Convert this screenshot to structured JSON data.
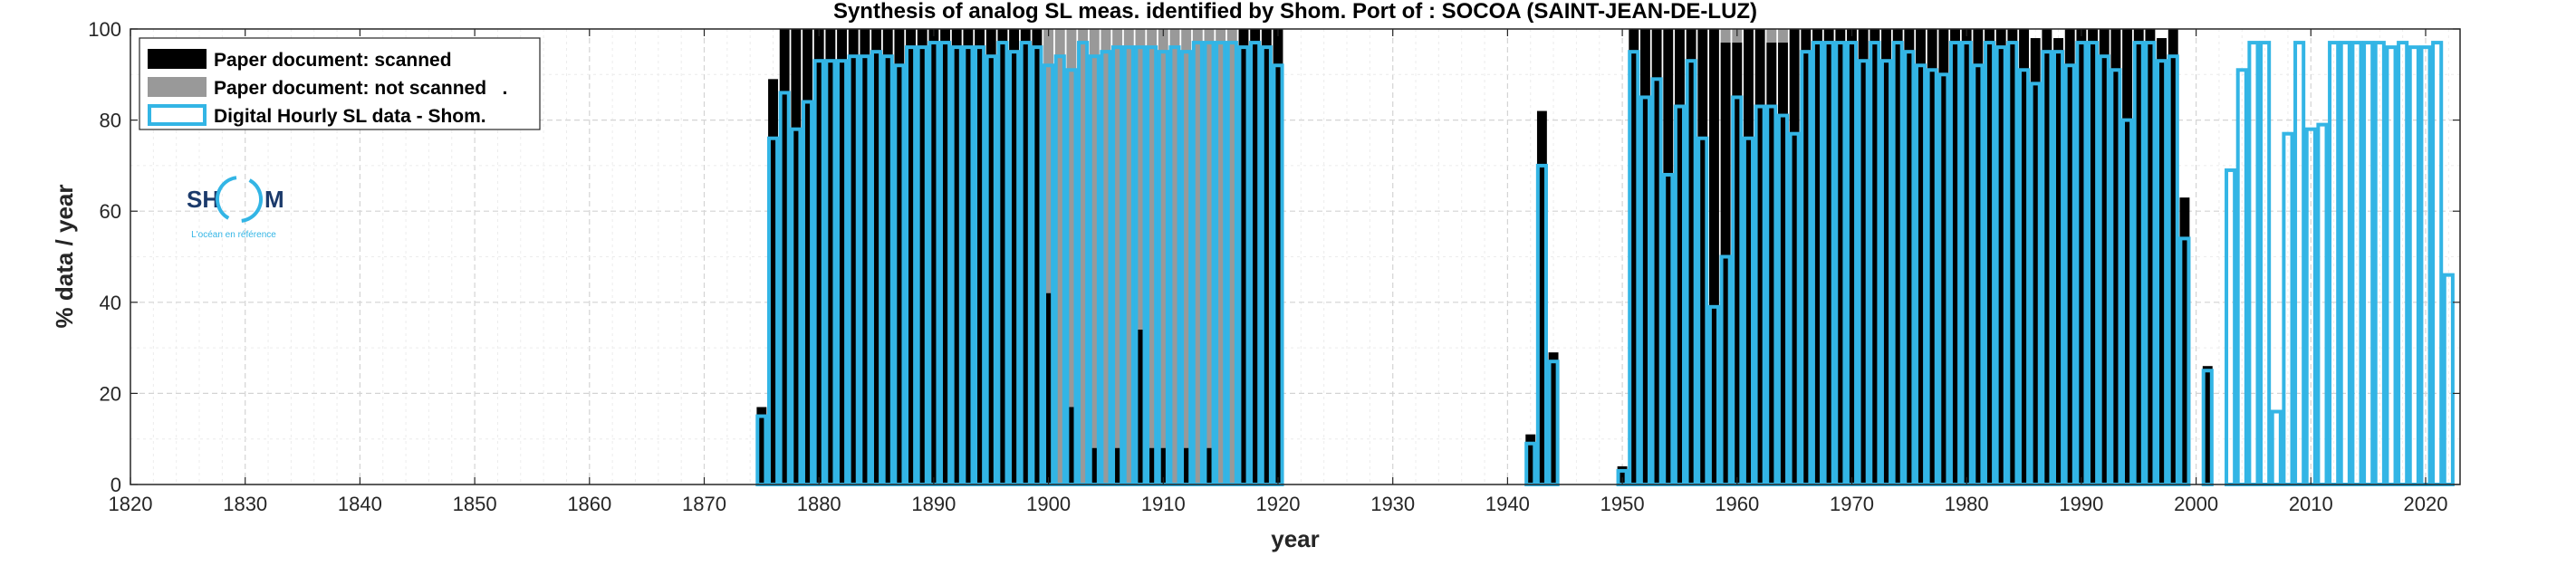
{
  "chart_data": {
    "type": "bar",
    "title": "Synthesis of analog SL meas. identified by Shom. Port of : SOCOA (SAINT-JEAN-DE-LUZ)",
    "xlabel": "year",
    "ylabel": "% data / year",
    "xlim": [
      1820,
      2023
    ],
    "ylim": [
      0,
      100
    ],
    "x_ticks": [
      1820,
      1830,
      1840,
      1850,
      1860,
      1870,
      1880,
      1890,
      1900,
      1910,
      1920,
      1930,
      1940,
      1950,
      1960,
      1970,
      1980,
      1990,
      2000,
      2010,
      2020
    ],
    "y_ticks": [
      0,
      20,
      40,
      60,
      80,
      100
    ],
    "grid": true,
    "legend_position": "top-left",
    "colors": {
      "scanned": "#000000",
      "not_scanned": "#999999",
      "digital": "#33b5e5"
    },
    "series": [
      {
        "name": "Paper document: scanned",
        "points": [
          {
            "x": 1875,
            "y": 17
          },
          {
            "x": 1876,
            "y": 89
          },
          {
            "x": 1877,
            "y": 100
          },
          {
            "x": 1878,
            "y": 100
          },
          {
            "x": 1879,
            "y": 100
          },
          {
            "x": 1880,
            "y": 100
          },
          {
            "x": 1881,
            "y": 100
          },
          {
            "x": 1882,
            "y": 100
          },
          {
            "x": 1883,
            "y": 100
          },
          {
            "x": 1884,
            "y": 100
          },
          {
            "x": 1885,
            "y": 100
          },
          {
            "x": 1886,
            "y": 100
          },
          {
            "x": 1887,
            "y": 100
          },
          {
            "x": 1888,
            "y": 100
          },
          {
            "x": 1889,
            "y": 100
          },
          {
            "x": 1890,
            "y": 100
          },
          {
            "x": 1891,
            "y": 100
          },
          {
            "x": 1892,
            "y": 100
          },
          {
            "x": 1893,
            "y": 100
          },
          {
            "x": 1894,
            "y": 100
          },
          {
            "x": 1895,
            "y": 100
          },
          {
            "x": 1896,
            "y": 100
          },
          {
            "x": 1897,
            "y": 100
          },
          {
            "x": 1898,
            "y": 100
          },
          {
            "x": 1899,
            "y": 100
          },
          {
            "x": 1900,
            "y": 42
          },
          {
            "x": 1902,
            "y": 17
          },
          {
            "x": 1904,
            "y": 8
          },
          {
            "x": 1906,
            "y": 8
          },
          {
            "x": 1908,
            "y": 34
          },
          {
            "x": 1909,
            "y": 8
          },
          {
            "x": 1910,
            "y": 8
          },
          {
            "x": 1912,
            "y": 8
          },
          {
            "x": 1914,
            "y": 8
          },
          {
            "x": 1917,
            "y": 100
          },
          {
            "x": 1918,
            "y": 100
          },
          {
            "x": 1919,
            "y": 100
          },
          {
            "x": 1920,
            "y": 100
          },
          {
            "x": 1942,
            "y": 11
          },
          {
            "x": 1943,
            "y": 82
          },
          {
            "x": 1944,
            "y": 29
          },
          {
            "x": 1950,
            "y": 4
          },
          {
            "x": 1951,
            "y": 100
          },
          {
            "x": 1952,
            "y": 100
          },
          {
            "x": 1953,
            "y": 100
          },
          {
            "x": 1954,
            "y": 100
          },
          {
            "x": 1955,
            "y": 100
          },
          {
            "x": 1956,
            "y": 100
          },
          {
            "x": 1957,
            "y": 100
          },
          {
            "x": 1958,
            "y": 100
          },
          {
            "x": 1959,
            "y": 97
          },
          {
            "x": 1960,
            "y": 97
          },
          {
            "x": 1961,
            "y": 100
          },
          {
            "x": 1962,
            "y": 100
          },
          {
            "x": 1963,
            "y": 97
          },
          {
            "x": 1964,
            "y": 97
          },
          {
            "x": 1965,
            "y": 100
          },
          {
            "x": 1966,
            "y": 100
          },
          {
            "x": 1967,
            "y": 100
          },
          {
            "x": 1968,
            "y": 100
          },
          {
            "x": 1969,
            "y": 100
          },
          {
            "x": 1970,
            "y": 100
          },
          {
            "x": 1971,
            "y": 100
          },
          {
            "x": 1972,
            "y": 100
          },
          {
            "x": 1973,
            "y": 100
          },
          {
            "x": 1974,
            "y": 100
          },
          {
            "x": 1975,
            "y": 100
          },
          {
            "x": 1976,
            "y": 100
          },
          {
            "x": 1977,
            "y": 100
          },
          {
            "x": 1978,
            "y": 100
          },
          {
            "x": 1979,
            "y": 100
          },
          {
            "x": 1980,
            "y": 100
          },
          {
            "x": 1981,
            "y": 100
          },
          {
            "x": 1982,
            "y": 100
          },
          {
            "x": 1983,
            "y": 100
          },
          {
            "x": 1984,
            "y": 100
          },
          {
            "x": 1985,
            "y": 100
          },
          {
            "x": 1986,
            "y": 98
          },
          {
            "x": 1987,
            "y": 100
          },
          {
            "x": 1988,
            "y": 98
          },
          {
            "x": 1989,
            "y": 100
          },
          {
            "x": 1990,
            "y": 100
          },
          {
            "x": 1991,
            "y": 100
          },
          {
            "x": 1992,
            "y": 100
          },
          {
            "x": 1993,
            "y": 100
          },
          {
            "x": 1994,
            "y": 100
          },
          {
            "x": 1995,
            "y": 100
          },
          {
            "x": 1996,
            "y": 100
          },
          {
            "x": 1997,
            "y": 98
          },
          {
            "x": 1998,
            "y": 100
          },
          {
            "x": 1999,
            "y": 63
          },
          {
            "x": 2001,
            "y": 26
          }
        ]
      },
      {
        "name": "Paper document: not scanned",
        "points": [
          {
            "x": 1900,
            "y": 100
          },
          {
            "x": 1901,
            "y": 100
          },
          {
            "x": 1902,
            "y": 100
          },
          {
            "x": 1903,
            "y": 100
          },
          {
            "x": 1904,
            "y": 100
          },
          {
            "x": 1905,
            "y": 100
          },
          {
            "x": 1906,
            "y": 100
          },
          {
            "x": 1907,
            "y": 100
          },
          {
            "x": 1908,
            "y": 100
          },
          {
            "x": 1909,
            "y": 100
          },
          {
            "x": 1910,
            "y": 100
          },
          {
            "x": 1911,
            "y": 100
          },
          {
            "x": 1912,
            "y": 100
          },
          {
            "x": 1913,
            "y": 100
          },
          {
            "x": 1914,
            "y": 100
          },
          {
            "x": 1915,
            "y": 100
          },
          {
            "x": 1916,
            "y": 100
          },
          {
            "x": 1959,
            "y": 100
          },
          {
            "x": 1960,
            "y": 100
          },
          {
            "x": 1963,
            "y": 100
          },
          {
            "x": 1964,
            "y": 100
          },
          {
            "x": 1975,
            "y": 100
          }
        ]
      },
      {
        "name": "Digital Hourly SL data - Shom.",
        "points": [
          {
            "x": 1875,
            "y": 15
          },
          {
            "x": 1876,
            "y": 76
          },
          {
            "x": 1877,
            "y": 86
          },
          {
            "x": 1878,
            "y": 78
          },
          {
            "x": 1879,
            "y": 84
          },
          {
            "x": 1880,
            "y": 93
          },
          {
            "x": 1881,
            "y": 93
          },
          {
            "x": 1882,
            "y": 93
          },
          {
            "x": 1883,
            "y": 94
          },
          {
            "x": 1884,
            "y": 94
          },
          {
            "x": 1885,
            "y": 95
          },
          {
            "x": 1886,
            "y": 94
          },
          {
            "x": 1887,
            "y": 92
          },
          {
            "x": 1888,
            "y": 96
          },
          {
            "x": 1889,
            "y": 96
          },
          {
            "x": 1890,
            "y": 97
          },
          {
            "x": 1891,
            "y": 97
          },
          {
            "x": 1892,
            "y": 96
          },
          {
            "x": 1893,
            "y": 96
          },
          {
            "x": 1894,
            "y": 96
          },
          {
            "x": 1895,
            "y": 94
          },
          {
            "x": 1896,
            "y": 97
          },
          {
            "x": 1897,
            "y": 95
          },
          {
            "x": 1898,
            "y": 97
          },
          {
            "x": 1899,
            "y": 96
          },
          {
            "x": 1900,
            "y": 92
          },
          {
            "x": 1901,
            "y": 94
          },
          {
            "x": 1902,
            "y": 91
          },
          {
            "x": 1903,
            "y": 97
          },
          {
            "x": 1904,
            "y": 94
          },
          {
            "x": 1905,
            "y": 95
          },
          {
            "x": 1906,
            "y": 96
          },
          {
            "x": 1907,
            "y": 96
          },
          {
            "x": 1908,
            "y": 96
          },
          {
            "x": 1909,
            "y": 96
          },
          {
            "x": 1910,
            "y": 95
          },
          {
            "x": 1911,
            "y": 96
          },
          {
            "x": 1912,
            "y": 95
          },
          {
            "x": 1913,
            "y": 97
          },
          {
            "x": 1914,
            "y": 97
          },
          {
            "x": 1915,
            "y": 97
          },
          {
            "x": 1916,
            "y": 97
          },
          {
            "x": 1917,
            "y": 96
          },
          {
            "x": 1918,
            "y": 97
          },
          {
            "x": 1919,
            "y": 96
          },
          {
            "x": 1920,
            "y": 92
          },
          {
            "x": 1942,
            "y": 9
          },
          {
            "x": 1943,
            "y": 70
          },
          {
            "x": 1944,
            "y": 27
          },
          {
            "x": 1950,
            "y": 3
          },
          {
            "x": 1951,
            "y": 95
          },
          {
            "x": 1952,
            "y": 85
          },
          {
            "x": 1953,
            "y": 89
          },
          {
            "x": 1954,
            "y": 68
          },
          {
            "x": 1955,
            "y": 83
          },
          {
            "x": 1956,
            "y": 93
          },
          {
            "x": 1957,
            "y": 76
          },
          {
            "x": 1958,
            "y": 39
          },
          {
            "x": 1959,
            "y": 50
          },
          {
            "x": 1960,
            "y": 85
          },
          {
            "x": 1961,
            "y": 76
          },
          {
            "x": 1962,
            "y": 83
          },
          {
            "x": 1963,
            "y": 83
          },
          {
            "x": 1964,
            "y": 81
          },
          {
            "x": 1965,
            "y": 77
          },
          {
            "x": 1966,
            "y": 95
          },
          {
            "x": 1967,
            "y": 97
          },
          {
            "x": 1968,
            "y": 97
          },
          {
            "x": 1969,
            "y": 97
          },
          {
            "x": 1970,
            "y": 97
          },
          {
            "x": 1971,
            "y": 93
          },
          {
            "x": 1972,
            "y": 97
          },
          {
            "x": 1973,
            "y": 93
          },
          {
            "x": 1974,
            "y": 97
          },
          {
            "x": 1975,
            "y": 95
          },
          {
            "x": 1976,
            "y": 92
          },
          {
            "x": 1977,
            "y": 91
          },
          {
            "x": 1978,
            "y": 90
          },
          {
            "x": 1979,
            "y": 97
          },
          {
            "x": 1980,
            "y": 97
          },
          {
            "x": 1981,
            "y": 92
          },
          {
            "x": 1982,
            "y": 97
          },
          {
            "x": 1983,
            "y": 96
          },
          {
            "x": 1984,
            "y": 97
          },
          {
            "x": 1985,
            "y": 91
          },
          {
            "x": 1986,
            "y": 88
          },
          {
            "x": 1987,
            "y": 95
          },
          {
            "x": 1988,
            "y": 95
          },
          {
            "x": 1989,
            "y": 92
          },
          {
            "x": 1990,
            "y": 97
          },
          {
            "x": 1991,
            "y": 97
          },
          {
            "x": 1992,
            "y": 94
          },
          {
            "x": 1993,
            "y": 91
          },
          {
            "x": 1994,
            "y": 80
          },
          {
            "x": 1995,
            "y": 97
          },
          {
            "x": 1996,
            "y": 97
          },
          {
            "x": 1997,
            "y": 93
          },
          {
            "x": 1998,
            "y": 94
          },
          {
            "x": 1999,
            "y": 54
          },
          {
            "x": 2001,
            "y": 25
          },
          {
            "x": 2003,
            "y": 69
          },
          {
            "x": 2004,
            "y": 91
          },
          {
            "x": 2005,
            "y": 97
          },
          {
            "x": 2006,
            "y": 97
          },
          {
            "x": 2007,
            "y": 16
          },
          {
            "x": 2008,
            "y": 77
          },
          {
            "x": 2009,
            "y": 97
          },
          {
            "x": 2010,
            "y": 78
          },
          {
            "x": 2011,
            "y": 79
          },
          {
            "x": 2012,
            "y": 97
          },
          {
            "x": 2013,
            "y": 97
          },
          {
            "x": 2014,
            "y": 97
          },
          {
            "x": 2015,
            "y": 97
          },
          {
            "x": 2016,
            "y": 97
          },
          {
            "x": 2017,
            "y": 96
          },
          {
            "x": 2018,
            "y": 97
          },
          {
            "x": 2019,
            "y": 96
          },
          {
            "x": 2020,
            "y": 96
          },
          {
            "x": 2021,
            "y": 97
          },
          {
            "x": 2022,
            "y": 46
          }
        ]
      }
    ]
  },
  "legend": {
    "items": [
      {
        "label": "Paper document: scanned",
        "style": "filled",
        "color": "#000000"
      },
      {
        "label": "Paper document: not scanned   .",
        "style": "filled",
        "color": "#999999"
      },
      {
        "label": "Digital Hourly SL data - Shom.",
        "style": "outline",
        "color": "#33b5e5"
      }
    ]
  },
  "logo": {
    "letters_left": "SH",
    "letters_right": "M",
    "tagline": "L'océan en référence"
  }
}
